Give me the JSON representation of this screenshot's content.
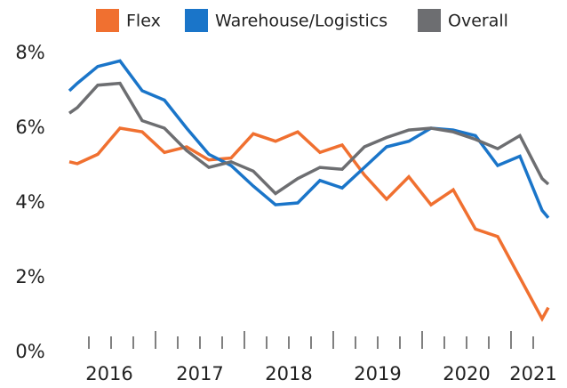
{
  "chart_data": {
    "type": "line",
    "x": [
      2015.8,
      2015.89,
      2016.12,
      2016.37,
      2016.62,
      2016.87,
      2017.12,
      2017.37,
      2017.62,
      2017.87,
      2018.12,
      2018.37,
      2018.62,
      2018.87,
      2019.12,
      2019.37,
      2019.62,
      2019.87,
      2020.12,
      2020.37,
      2020.62,
      2020.87,
      2021.12,
      2021.19
    ],
    "series": [
      {
        "name": "Flex",
        "color": "#f07030",
        "values": [
          5.1,
          5.05,
          5.3,
          6.0,
          5.9,
          5.35,
          5.5,
          5.15,
          5.2,
          5.85,
          5.65,
          5.9,
          5.35,
          5.55,
          4.75,
          4.1,
          4.7,
          3.95,
          4.35,
          3.3,
          3.1,
          2.0,
          0.9,
          1.2
        ]
      },
      {
        "name": "Warehouse/Logistics",
        "color": "#1a75c9",
        "values": [
          7.0,
          7.2,
          7.65,
          7.8,
          7.0,
          6.75,
          6.0,
          5.3,
          5.0,
          4.45,
          3.95,
          4.0,
          4.6,
          4.4,
          4.95,
          5.5,
          5.65,
          6.0,
          5.95,
          5.8,
          5.0,
          5.25,
          3.8,
          3.6
        ]
      },
      {
        "name": "Overall",
        "color": "#6d6e71",
        "values": [
          6.4,
          6.55,
          7.15,
          7.2,
          6.2,
          6.0,
          5.4,
          4.95,
          5.1,
          4.85,
          4.25,
          4.65,
          4.95,
          4.9,
          5.5,
          5.75,
          5.95,
          6.0,
          5.9,
          5.7,
          5.45,
          5.8,
          4.65,
          4.5
        ]
      }
    ],
    "xlim": [
      2015.8,
      2021.19
    ],
    "xticks": [
      {
        "value": 2016.25,
        "label": "2016"
      },
      {
        "value": 2017.27,
        "label": "2017"
      },
      {
        "value": 2018.27,
        "label": "2018"
      },
      {
        "value": 2019.27,
        "label": "2019"
      },
      {
        "value": 2020.27,
        "label": "2020"
      },
      {
        "value": 2021.02,
        "label": "2021"
      }
    ],
    "ylim": [
      0,
      8
    ],
    "yticks": [
      {
        "value": 0,
        "label": "0%"
      },
      {
        "value": 2,
        "label": "2%"
      },
      {
        "value": 4,
        "label": "4%"
      },
      {
        "value": 6,
        "label": "6%"
      },
      {
        "value": 8,
        "label": "8%"
      }
    ],
    "grid": false
  }
}
